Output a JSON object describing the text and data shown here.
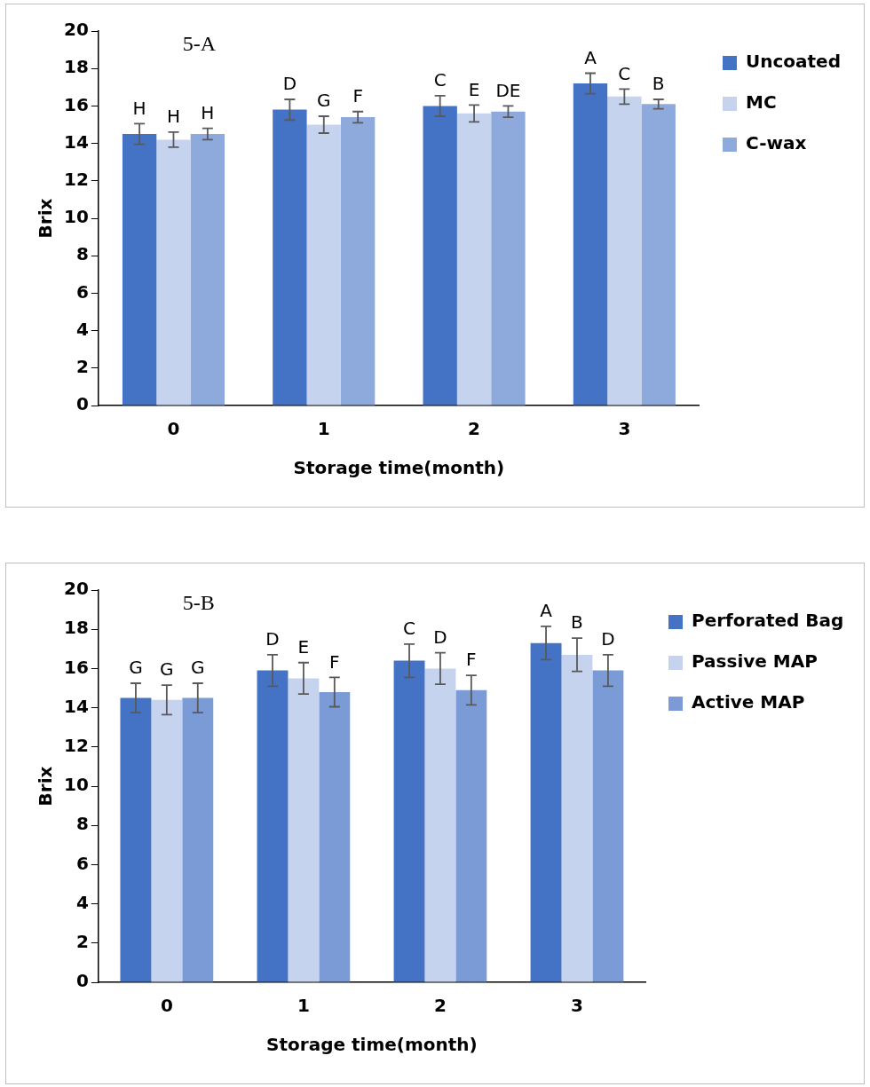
{
  "chart_data": [
    {
      "type": "bar",
      "title": "5-A",
      "xlabel": "Storage time(month)",
      "ylabel": "Brix",
      "categories": [
        "0",
        "1",
        "2",
        "3"
      ],
      "series": [
        {
          "name": "Uncoated",
          "color": "#4472c4",
          "values": [
            14.5,
            15.8,
            16.0,
            17.2
          ],
          "errors": [
            0.55,
            0.55,
            0.55,
            0.55
          ],
          "value_labels": [
            "H",
            "D",
            "C",
            "A"
          ]
        },
        {
          "name": "MC",
          "color": "#c5d3ee",
          "values": [
            14.2,
            15.0,
            15.6,
            16.5
          ],
          "errors": [
            0.4,
            0.45,
            0.45,
            0.4
          ],
          "value_labels": [
            "H",
            "G",
            "E",
            "C"
          ]
        },
        {
          "name": "C-wax",
          "color": "#8eaadc",
          "values": [
            14.5,
            15.4,
            15.7,
            16.1
          ],
          "errors": [
            0.3,
            0.3,
            0.3,
            0.25
          ],
          "value_labels": [
            "H",
            "F",
            "DE",
            "B"
          ]
        }
      ],
      "ylim": [
        0,
        20
      ],
      "yticks": [
        0,
        2,
        4,
        6,
        8,
        10,
        12,
        14,
        16,
        18,
        20
      ],
      "grid": false,
      "legend": "top right"
    },
    {
      "type": "bar",
      "title": "5-B",
      "xlabel": "Storage time(month)",
      "ylabel": "Brix",
      "categories": [
        "0",
        "1",
        "2",
        "3"
      ],
      "series": [
        {
          "name": "Perforated Bag",
          "color": "#4472c4",
          "values": [
            14.5,
            15.9,
            16.4,
            17.3
          ],
          "errors": [
            0.75,
            0.8,
            0.85,
            0.85
          ],
          "value_labels": [
            "G",
            "D",
            "C",
            "A"
          ]
        },
        {
          "name": "Passive MAP",
          "color": "#c5d3ee",
          "values": [
            14.4,
            15.5,
            16.0,
            16.7
          ],
          "errors": [
            0.75,
            0.8,
            0.8,
            0.85
          ],
          "value_labels": [
            "G",
            "E",
            "D",
            "B"
          ]
        },
        {
          "name": "Active MAP",
          "color": "#7a9bd6",
          "values": [
            14.5,
            14.8,
            14.9,
            15.9
          ],
          "errors": [
            0.75,
            0.75,
            0.75,
            0.8
          ],
          "value_labels": [
            "G",
            "F",
            "F",
            "D"
          ]
        }
      ],
      "ylim": [
        0,
        20
      ],
      "yticks": [
        0,
        2,
        4,
        6,
        8,
        10,
        12,
        14,
        16,
        18,
        20
      ],
      "grid": false,
      "legend": "top right"
    }
  ]
}
